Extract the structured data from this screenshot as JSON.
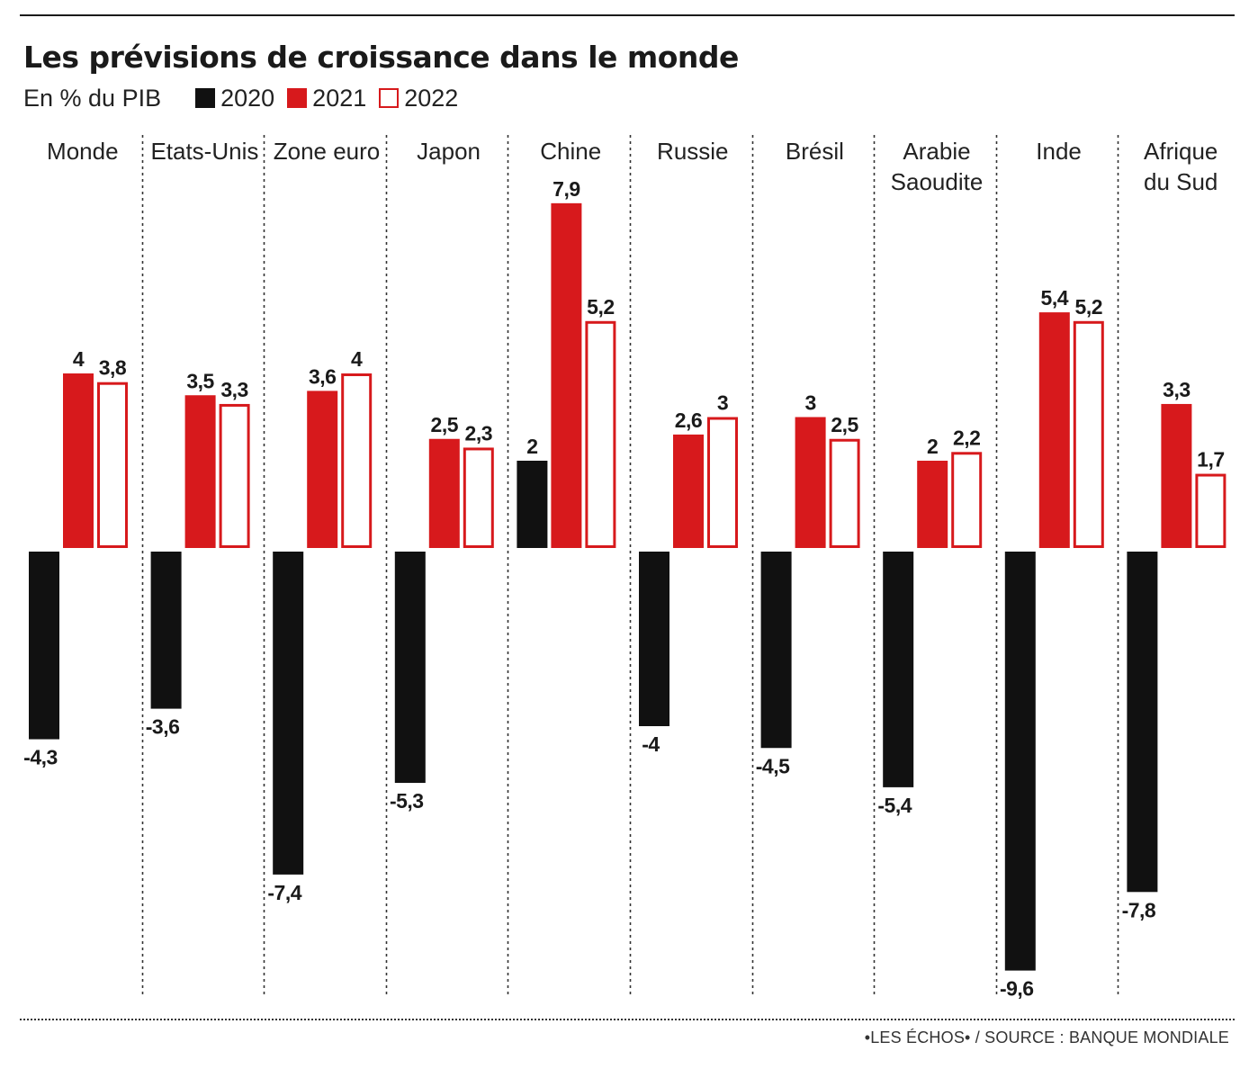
{
  "title": "Les prévisions de croissance dans le monde",
  "subtitle": "En % du PIB",
  "source": "•LES ÉCHOS• / SOURCE : BANQUE MONDIALE",
  "colors": {
    "y2020": "#111111",
    "y2021": "#d7191c",
    "y2022_fill": "#ffffff",
    "y2022_stroke": "#d7191c"
  },
  "chart_data": {
    "type": "bar",
    "categories": [
      "Monde",
      "Etats-Unis",
      "Zone euro",
      "Japon",
      "Chine",
      "Russie",
      "Brésil",
      "Arabie Saoudite",
      "Inde",
      "Afrique du Sud"
    ],
    "category_lines": [
      [
        "Monde"
      ],
      [
        "Etats-Unis"
      ],
      [
        "Zone euro"
      ],
      [
        "Japon"
      ],
      [
        "Chine"
      ],
      [
        "Russie"
      ],
      [
        "Brésil"
      ],
      [
        "Arabie",
        "Saoudite"
      ],
      [
        "Inde"
      ],
      [
        "Afrique",
        "du Sud"
      ]
    ],
    "series": [
      {
        "name": "2020",
        "values": [
          -4.3,
          -3.6,
          -7.4,
          -5.3,
          2,
          -4,
          -4.5,
          -5.4,
          -9.6,
          -7.8
        ],
        "labels": [
          "-4,3",
          "-3,6",
          "-7,4",
          "-5,3",
          "2",
          "-4",
          "-4,5",
          "-5,4",
          "-9,6",
          "-7,8"
        ]
      },
      {
        "name": "2021",
        "values": [
          4,
          3.5,
          3.6,
          2.5,
          7.9,
          2.6,
          3,
          2,
          5.4,
          3.3
        ],
        "labels": [
          "4",
          "3,5",
          "3,6",
          "2,5",
          "7,9",
          "2,6",
          "3",
          "2",
          "5,4",
          "3,3"
        ]
      },
      {
        "name": "2022",
        "values": [
          3.8,
          3.3,
          4,
          2.3,
          5.2,
          3,
          2.5,
          2.2,
          5.2,
          1.7
        ],
        "labels": [
          "3,8",
          "3,3",
          "4",
          "2,3",
          "5,2",
          "3",
          "2,5",
          "2,2",
          "5,2",
          "1,7"
        ]
      }
    ],
    "ylabel": "En % du PIB",
    "ylim": [
      -10,
      8.5
    ],
    "grid": false,
    "legend": "top-left"
  }
}
